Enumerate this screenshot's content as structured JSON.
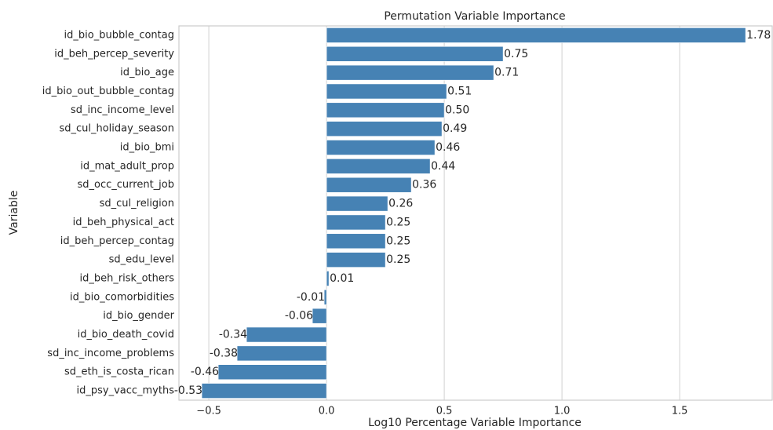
{
  "chart_data": {
    "type": "barh",
    "title": "Permutation Variable Importance",
    "x_label": "Log10 Percentage Variable Importance",
    "y_label": "Variable",
    "categories": [
      "id_bio_bubble_contag",
      "id_beh_percep_severity",
      "id_bio_age",
      "id_bio_out_bubble_contag",
      "sd_inc_income_level",
      "sd_cul_holiday_season",
      "id_bio_bmi",
      "id_mat_adult_prop",
      "sd_occ_current_job",
      "sd_cul_religion",
      "id_beh_physical_act",
      "id_beh_percep_contag",
      "sd_edu_level",
      "id_beh_risk_others",
      "id_bio_comorbidities",
      "id_bio_gender",
      "id_bio_death_covid",
      "sd_inc_income_problems",
      "sd_eth_is_costa_rican",
      "id_psy_vacc_myths"
    ],
    "values": [
      1.78,
      0.75,
      0.71,
      0.51,
      0.5,
      0.49,
      0.46,
      0.44,
      0.36,
      0.26,
      0.25,
      0.25,
      0.25,
      0.01,
      -0.01,
      -0.06,
      -0.34,
      -0.38,
      -0.46,
      -0.53
    ],
    "value_labels": [
      "1.78",
      "0.75",
      "0.71",
      "0.51",
      "0.50",
      "0.49",
      "0.46",
      "0.44",
      "0.36",
      "0.26",
      "0.25",
      "0.25",
      "0.25",
      "0.01",
      "-0.01",
      "-0.06",
      "-0.34",
      "-0.38",
      "-0.46",
      "-0.53"
    ],
    "color": "#4682b4",
    "xlim": [
      -0.627,
      1.893
    ],
    "xticks": [
      {
        "value": -0.5,
        "label": "−0.5"
      },
      {
        "value": 0,
        "label": "0.0"
      },
      {
        "value": 0.5,
        "label": "0.5"
      },
      {
        "value": 1,
        "label": "1.0"
      },
      {
        "value": 1.5,
        "label": "1.5"
      }
    ],
    "grid": true
  }
}
